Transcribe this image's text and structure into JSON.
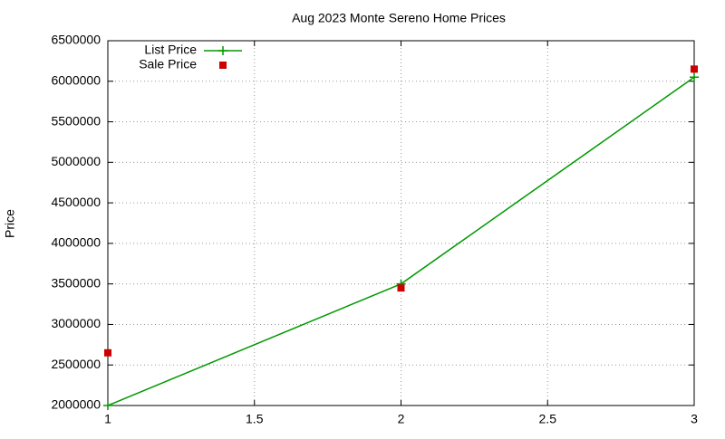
{
  "chart_data": {
    "type": "line",
    "title": "Aug 2023 Monte Sereno Home Prices",
    "y_label": "Price",
    "x": [
      1,
      2,
      3
    ],
    "series": [
      {
        "name": "List Price",
        "color": "#009900",
        "marker": "plus",
        "line": true,
        "values": [
          2000000,
          3500000,
          6050000
        ]
      },
      {
        "name": "Sale Price",
        "color": "#cc0000",
        "marker": "square",
        "line": false,
        "values": [
          2650000,
          3450000,
          6150000
        ]
      }
    ],
    "xlim": [
      1,
      3
    ],
    "xticks": [
      1,
      1.5,
      2,
      2.5,
      3
    ],
    "ylim": [
      2000000,
      6500000
    ],
    "yticks": [
      2000000,
      2500000,
      3000000,
      3500000,
      4000000,
      4500000,
      5000000,
      5500000,
      6000000,
      6500000
    ],
    "grid": true,
    "legend": "top-left"
  }
}
